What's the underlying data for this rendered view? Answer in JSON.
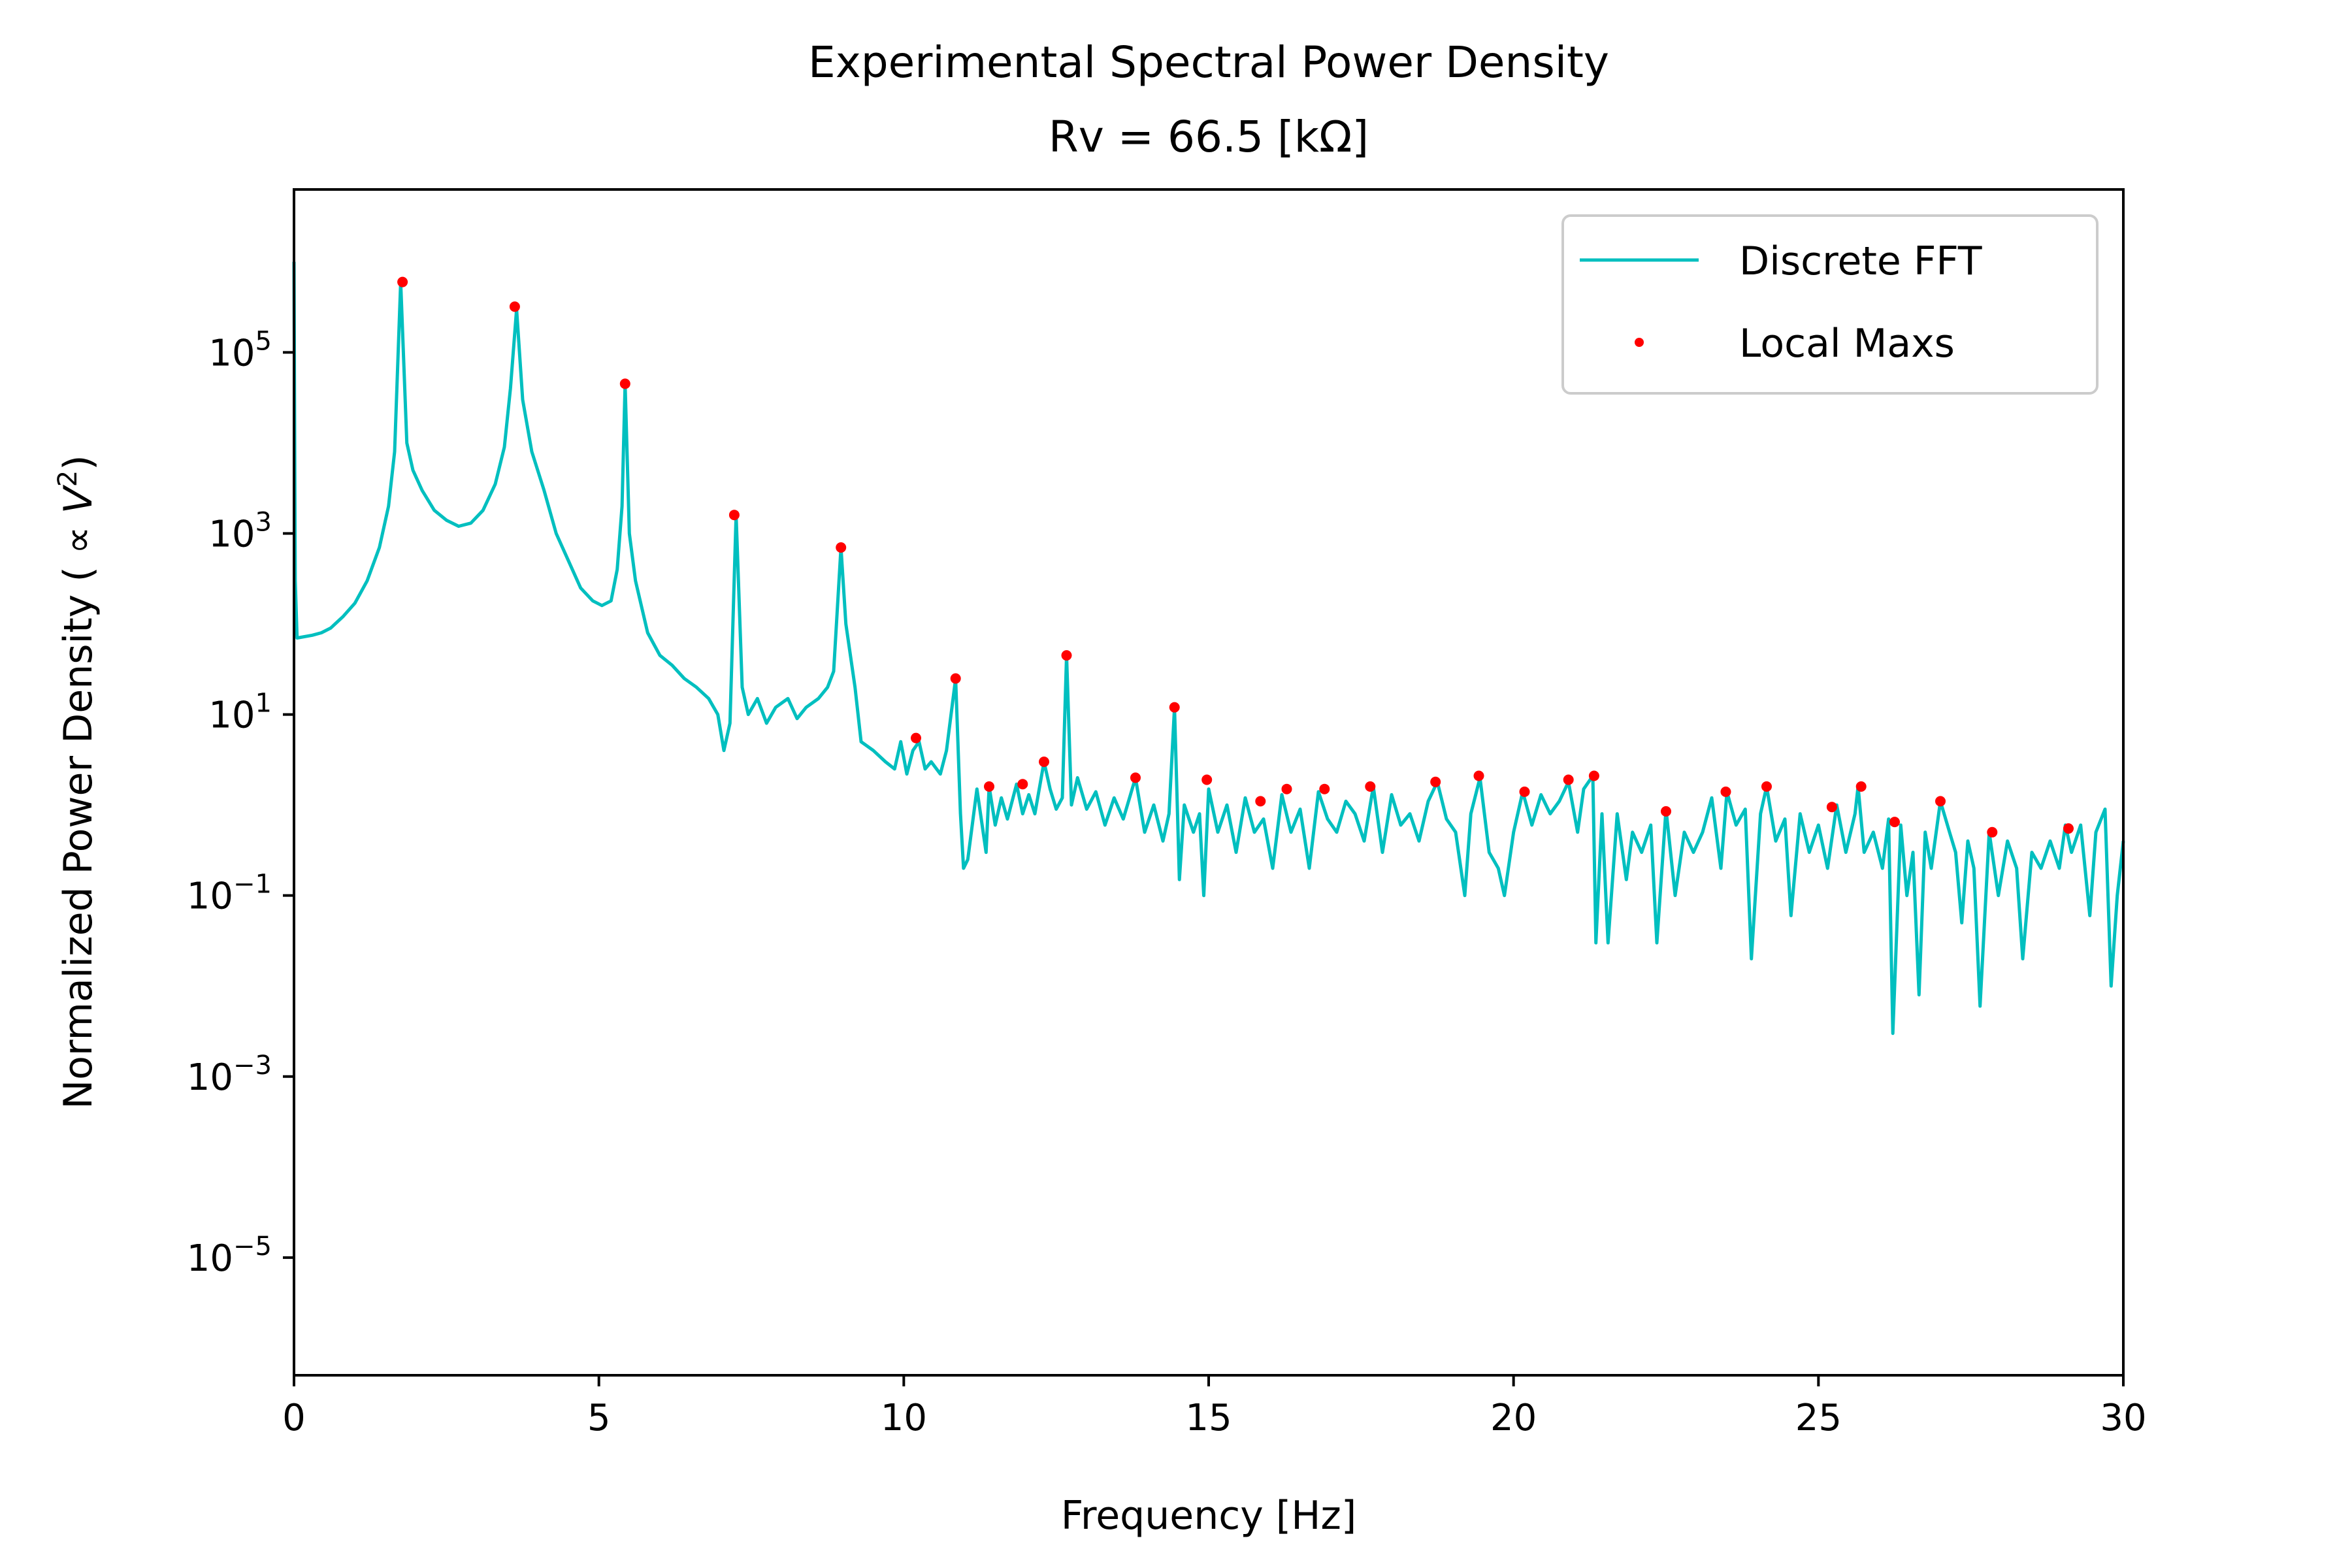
{
  "chart_data": {
    "type": "line",
    "title": "Experimental Spectral Power Density",
    "subtitle": "Rv = 66.5 [kΩ]",
    "xlabel": "Frequency [Hz]",
    "ylabel_text": "Normalized Power Density ( ∝ ",
    "ylabel_var": "V",
    "ylabel_exp": "2",
    "ylabel_close": ")",
    "yscale": "log",
    "xlim": [
      0,
      30
    ],
    "ylim_log10": [
      -6.3,
      6.8
    ],
    "x_ticks": [
      0,
      5,
      10,
      15,
      20,
      25,
      30
    ],
    "x_tick_labels": [
      "0",
      "5",
      "10",
      "15",
      "20",
      "25",
      "30"
    ],
    "y_ticks_exp": [
      -5,
      -3,
      -1,
      1,
      3,
      5
    ],
    "y_tick_base": "10",
    "y_tick_exp_labels": [
      "−5",
      "−3",
      "−1",
      "1",
      "3",
      "5"
    ],
    "legend": {
      "position": "upper right",
      "entries": [
        "Discrete FFT",
        "Local Maxs"
      ]
    },
    "colors": {
      "fft": "#00bfbf",
      "maxima": "#ff0000"
    },
    "series": [
      {
        "name": "Discrete FFT",
        "style": "line",
        "points": [
          [
            0.0,
            1000000
          ],
          [
            0.02,
            300
          ],
          [
            0.05,
            70
          ],
          [
            0.3,
            75
          ],
          [
            0.45,
            80
          ],
          [
            0.6,
            90
          ],
          [
            0.8,
            120
          ],
          [
            1.0,
            170
          ],
          [
            1.2,
            300
          ],
          [
            1.4,
            700
          ],
          [
            1.55,
            2000
          ],
          [
            1.65,
            8000
          ],
          [
            1.75,
            600000
          ],
          [
            1.85,
            10000
          ],
          [
            1.95,
            5000
          ],
          [
            2.1,
            3000
          ],
          [
            2.3,
            1800
          ],
          [
            2.5,
            1400
          ],
          [
            2.7,
            1200
          ],
          [
            2.9,
            1300
          ],
          [
            3.1,
            1800
          ],
          [
            3.3,
            3500
          ],
          [
            3.45,
            9000
          ],
          [
            3.55,
            40000
          ],
          [
            3.65,
            300000
          ],
          [
            3.75,
            30000
          ],
          [
            3.9,
            8000
          ],
          [
            4.1,
            3000
          ],
          [
            4.3,
            1000
          ],
          [
            4.5,
            500
          ],
          [
            4.7,
            250
          ],
          [
            4.9,
            180
          ],
          [
            5.05,
            160
          ],
          [
            5.2,
            180
          ],
          [
            5.3,
            400
          ],
          [
            5.38,
            2000
          ],
          [
            5.43,
            45000
          ],
          [
            5.5,
            1000
          ],
          [
            5.6,
            300
          ],
          [
            5.8,
            80
          ],
          [
            6.0,
            45
          ],
          [
            6.2,
            35
          ],
          [
            6.4,
            25
          ],
          [
            6.6,
            20
          ],
          [
            6.8,
            15
          ],
          [
            6.95,
            10
          ],
          [
            7.05,
            4
          ],
          [
            7.15,
            8
          ],
          [
            7.25,
            1600
          ],
          [
            7.35,
            20
          ],
          [
            7.45,
            10
          ],
          [
            7.6,
            15
          ],
          [
            7.75,
            8
          ],
          [
            7.9,
            12
          ],
          [
            8.1,
            15
          ],
          [
            8.25,
            9
          ],
          [
            8.4,
            12
          ],
          [
            8.6,
            15
          ],
          [
            8.75,
            20
          ],
          [
            8.85,
            30
          ],
          [
            8.97,
            700
          ],
          [
            9.05,
            100
          ],
          [
            9.2,
            20
          ],
          [
            9.3,
            5
          ],
          [
            9.5,
            4
          ],
          [
            9.7,
            3
          ],
          [
            9.85,
            2.5
          ],
          [
            9.95,
            5
          ],
          [
            10.05,
            2.2
          ],
          [
            10.15,
            4
          ],
          [
            10.25,
            5
          ],
          [
            10.35,
            2.5
          ],
          [
            10.45,
            3
          ],
          [
            10.6,
            2.2
          ],
          [
            10.7,
            4
          ],
          [
            10.85,
            25
          ],
          [
            10.93,
            0.8
          ],
          [
            10.98,
            0.2
          ],
          [
            11.05,
            0.25
          ],
          [
            11.2,
            1.5
          ],
          [
            11.35,
            0.3
          ],
          [
            11.4,
            1.6
          ],
          [
            11.5,
            0.6
          ],
          [
            11.6,
            1.2
          ],
          [
            11.7,
            0.7
          ],
          [
            11.85,
            1.7
          ],
          [
            11.95,
            0.8
          ],
          [
            12.05,
            1.3
          ],
          [
            12.15,
            0.8
          ],
          [
            12.3,
            3
          ],
          [
            12.4,
            1.5
          ],
          [
            12.5,
            0.9
          ],
          [
            12.6,
            1.2
          ],
          [
            12.67,
            45
          ],
          [
            12.75,
            1.0
          ],
          [
            12.85,
            2.0
          ],
          [
            13.0,
            0.9
          ],
          [
            13.15,
            1.4
          ],
          [
            13.3,
            0.6
          ],
          [
            13.45,
            1.2
          ],
          [
            13.6,
            0.7
          ],
          [
            13.8,
            2
          ],
          [
            13.95,
            0.5
          ],
          [
            14.1,
            1.0
          ],
          [
            14.25,
            0.4
          ],
          [
            14.35,
            0.8
          ],
          [
            14.44,
            12
          ],
          [
            14.52,
            0.15
          ],
          [
            14.6,
            1.0
          ],
          [
            14.75,
            0.5
          ],
          [
            14.85,
            0.8
          ],
          [
            14.92,
            0.1
          ],
          [
            15.0,
            1.5
          ],
          [
            15.15,
            0.5
          ],
          [
            15.3,
            1.0
          ],
          [
            15.45,
            0.3
          ],
          [
            15.6,
            1.2
          ],
          [
            15.75,
            0.5
          ],
          [
            15.9,
            0.7
          ],
          [
            16.05,
            0.2
          ],
          [
            16.2,
            1.3
          ],
          [
            16.35,
            0.5
          ],
          [
            16.5,
            0.9
          ],
          [
            16.65,
            0.2
          ],
          [
            16.8,
            1.4
          ],
          [
            16.95,
            0.7
          ],
          [
            17.1,
            0.5
          ],
          [
            17.25,
            1.1
          ],
          [
            17.4,
            0.8
          ],
          [
            17.55,
            0.4
          ],
          [
            17.7,
            1.6
          ],
          [
            17.85,
            0.3
          ],
          [
            18.0,
            1.3
          ],
          [
            18.15,
            0.6
          ],
          [
            18.3,
            0.8
          ],
          [
            18.45,
            0.4
          ],
          [
            18.6,
            1.1
          ],
          [
            18.75,
            1.8
          ],
          [
            18.9,
            0.7
          ],
          [
            19.05,
            0.5
          ],
          [
            19.2,
            0.1
          ],
          [
            19.3,
            0.8
          ],
          [
            19.45,
            2
          ],
          [
            19.6,
            0.3
          ],
          [
            19.75,
            0.2
          ],
          [
            19.85,
            0.1
          ],
          [
            20.0,
            0.5
          ],
          [
            20.15,
            1.4
          ],
          [
            20.3,
            0.6
          ],
          [
            20.45,
            1.3
          ],
          [
            20.6,
            0.8
          ],
          [
            20.75,
            1.1
          ],
          [
            20.9,
            1.8
          ],
          [
            21.05,
            0.5
          ],
          [
            21.15,
            1.5
          ],
          [
            21.3,
            2.1
          ],
          [
            21.35,
            0.03
          ],
          [
            21.45,
            0.8
          ],
          [
            21.55,
            0.03
          ],
          [
            21.7,
            0.8
          ],
          [
            21.85,
            0.15
          ],
          [
            21.95,
            0.5
          ],
          [
            22.1,
            0.3
          ],
          [
            22.25,
            0.6
          ],
          [
            22.35,
            0.03
          ],
          [
            22.5,
            0.9
          ],
          [
            22.65,
            0.1
          ],
          [
            22.8,
            0.5
          ],
          [
            22.95,
            0.3
          ],
          [
            23.1,
            0.5
          ],
          [
            23.25,
            1.2
          ],
          [
            23.4,
            0.2
          ],
          [
            23.5,
            1.4
          ],
          [
            23.65,
            0.6
          ],
          [
            23.8,
            0.9
          ],
          [
            23.9,
            0.02
          ],
          [
            24.05,
            0.8
          ],
          [
            24.15,
            1.6
          ],
          [
            24.3,
            0.4
          ],
          [
            24.45,
            0.7
          ],
          [
            24.55,
            0.06
          ],
          [
            24.7,
            0.8
          ],
          [
            24.85,
            0.3
          ],
          [
            25.0,
            0.6
          ],
          [
            25.15,
            0.2
          ],
          [
            25.3,
            1.0
          ],
          [
            25.45,
            0.3
          ],
          [
            25.6,
            0.8
          ],
          [
            25.65,
            1.6
          ],
          [
            25.75,
            0.3
          ],
          [
            25.9,
            0.5
          ],
          [
            26.05,
            0.2
          ],
          [
            26.15,
            0.7
          ],
          [
            26.22,
            0.003
          ],
          [
            26.35,
            0.6
          ],
          [
            26.45,
            0.1
          ],
          [
            26.55,
            0.3
          ],
          [
            26.65,
            0.008
          ],
          [
            26.75,
            0.5
          ],
          [
            26.85,
            0.2
          ],
          [
            27.0,
            1.1
          ],
          [
            27.15,
            0.5
          ],
          [
            27.25,
            0.3
          ],
          [
            27.35,
            0.05
          ],
          [
            27.45,
            0.4
          ],
          [
            27.55,
            0.2
          ],
          [
            27.65,
            0.006
          ],
          [
            27.8,
            0.5
          ],
          [
            27.95,
            0.1
          ],
          [
            28.1,
            0.4
          ],
          [
            28.25,
            0.2
          ],
          [
            28.35,
            0.02
          ],
          [
            28.5,
            0.3
          ],
          [
            28.65,
            0.2
          ],
          [
            28.8,
            0.4
          ],
          [
            28.95,
            0.2
          ],
          [
            29.05,
            0.6
          ],
          [
            29.15,
            0.3
          ],
          [
            29.3,
            0.6
          ],
          [
            29.45,
            0.06
          ],
          [
            29.55,
            0.5
          ],
          [
            29.7,
            0.9
          ],
          [
            29.8,
            0.01
          ],
          [
            29.9,
            0.1
          ],
          [
            30.0,
            0.4
          ]
        ]
      },
      {
        "name": "Local Maxs",
        "style": "markers",
        "points": [
          [
            1.78,
            600000
          ],
          [
            3.62,
            320000
          ],
          [
            5.43,
            45000
          ],
          [
            7.22,
            1600
          ],
          [
            8.97,
            700
          ],
          [
            10.2,
            5.5
          ],
          [
            10.85,
            25
          ],
          [
            11.4,
            1.6
          ],
          [
            11.95,
            1.7
          ],
          [
            12.3,
            3
          ],
          [
            12.67,
            45
          ],
          [
            13.8,
            2
          ],
          [
            14.44,
            12
          ],
          [
            14.97,
            1.9
          ],
          [
            15.85,
            1.1
          ],
          [
            16.28,
            1.5
          ],
          [
            16.9,
            1.5
          ],
          [
            17.65,
            1.6
          ],
          [
            18.72,
            1.8
          ],
          [
            19.43,
            2.1
          ],
          [
            20.18,
            1.4
          ],
          [
            20.9,
            1.9
          ],
          [
            21.32,
            2.1
          ],
          [
            22.5,
            0.85
          ],
          [
            23.48,
            1.4
          ],
          [
            24.15,
            1.6
          ],
          [
            25.22,
            0.95
          ],
          [
            25.7,
            1.6
          ],
          [
            26.25,
            0.65
          ],
          [
            27.0,
            1.1
          ],
          [
            27.85,
            0.5
          ],
          [
            29.1,
            0.55
          ]
        ]
      }
    ]
  }
}
